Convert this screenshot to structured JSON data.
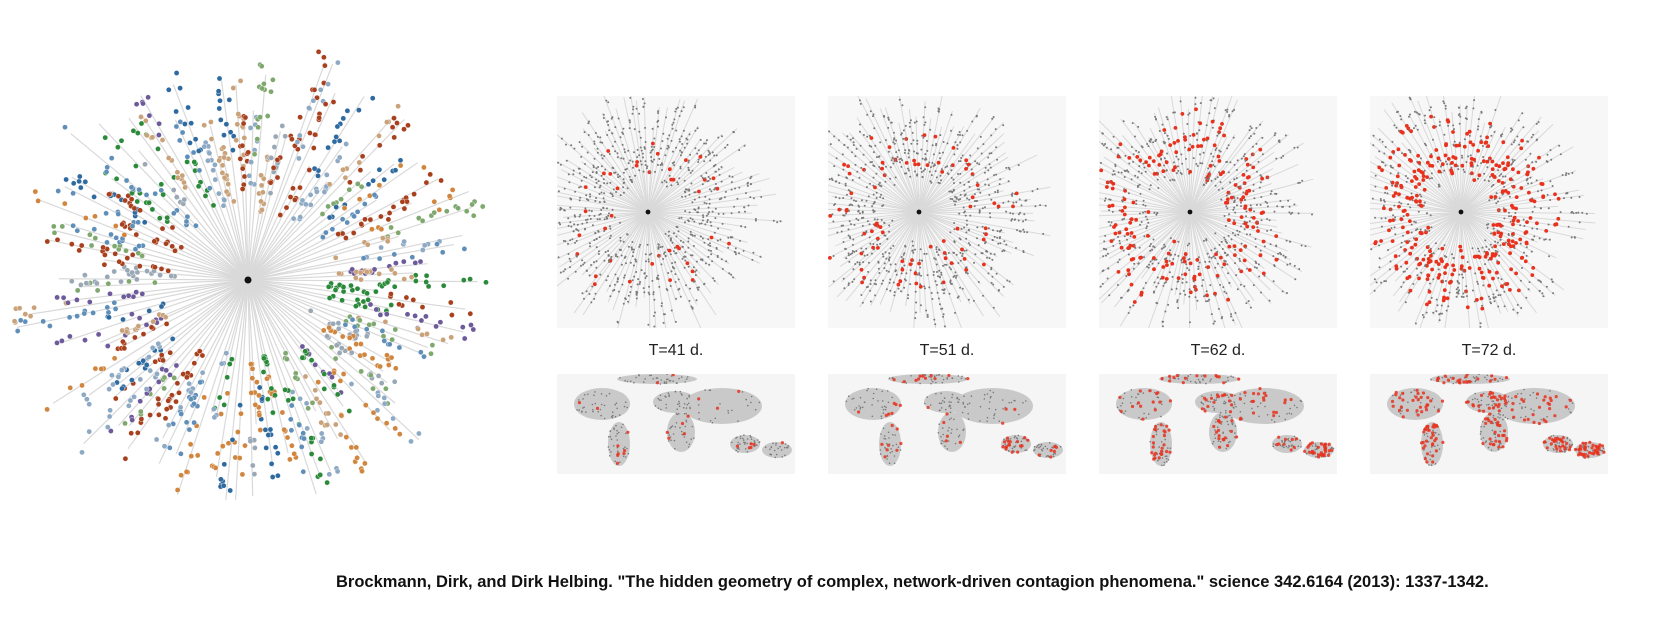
{
  "figure": {
    "panels": [
      {
        "time_label": "T=41 d.",
        "infected_fraction": 0.06
      },
      {
        "time_label": "T=51 d.",
        "infected_fraction": 0.14
      },
      {
        "time_label": "T=62 d.",
        "infected_fraction": 0.35
      },
      {
        "time_label": "T=72 d.",
        "infected_fraction": 0.55
      }
    ],
    "colors": {
      "edge": "#d9d9d9",
      "node_gray": "#7a7a7a",
      "infected": "#e8321e",
      "hub": "#111111",
      "map_land": "#c9c9c9",
      "tree_palette": [
        "#2e6aa0",
        "#5f8fb8",
        "#8da9c4",
        "#d0863f",
        "#c9a27a",
        "#a8401e",
        "#2a8a3a",
        "#7fa86f",
        "#6d5a9a",
        "#9aa7b5"
      ]
    }
  },
  "citation": "Brockmann, Dirk, and Dirk Helbing. \"The hidden geometry of complex, network-driven contagion phenomena.\" science 342.6164 (2013): 1337-1342."
}
